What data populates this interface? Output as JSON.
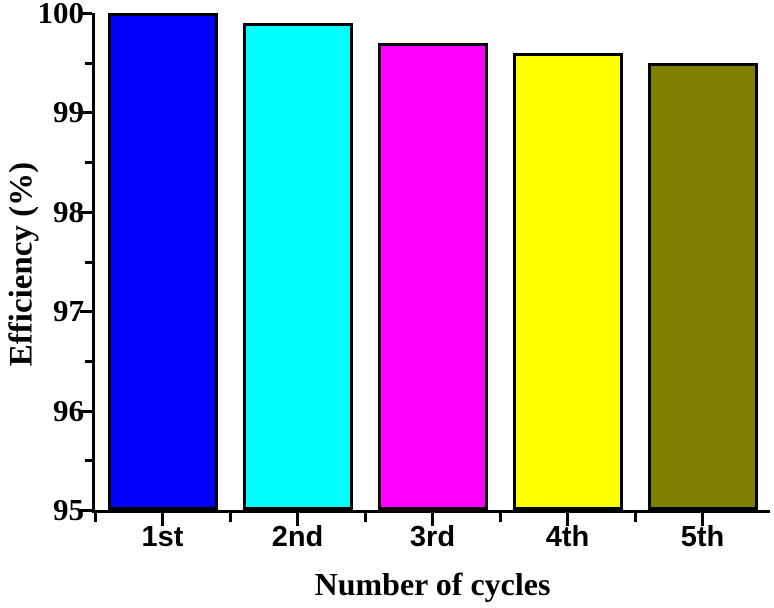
{
  "chart_data": {
    "type": "bar",
    "title": "",
    "categories": [
      "1st",
      "2nd",
      "3rd",
      "4th",
      "5th"
    ],
    "values": [
      100,
      99.9,
      99.7,
      99.6,
      99.5
    ],
    "bar_colors": [
      "#0000ff",
      "#00ffff",
      "#ff00ff",
      "#ffff00",
      "#808000"
    ],
    "bar_border_color": "#000000",
    "xlabel": "Number of cycles",
    "ylabel": "Efficiency (%)",
    "ylim": [
      95,
      100
    ],
    "y_major_ticks": [
      95,
      96,
      97,
      98,
      99,
      100
    ],
    "y_tick_labels": [
      "95",
      "96",
      "97",
      "98",
      "99",
      "100"
    ],
    "y_minor_step": 0.5,
    "grid": false,
    "legend": "none",
    "frame": "left-and-bottom-axes-only",
    "axis_color": "#000000",
    "background_color": "#ffffff"
  }
}
